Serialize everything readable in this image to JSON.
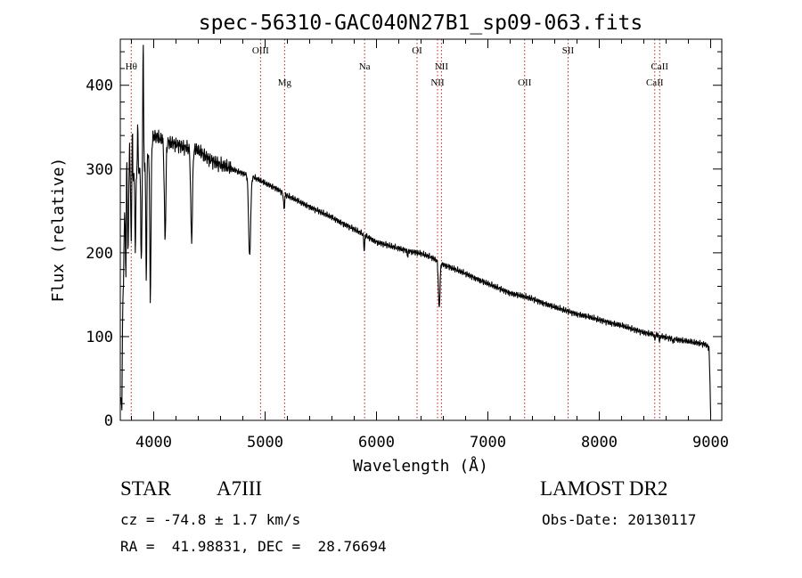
{
  "chart_data": {
    "type": "line",
    "title": "spec-56310-GAC040N27B1_sp09-063.fits",
    "xlabel": "Wavelength (Å)",
    "ylabel": "Flux (relative)",
    "xlim": [
      3700,
      9100
    ],
    "ylim": [
      0,
      455
    ],
    "x_ticks": [
      4000,
      5000,
      6000,
      7000,
      8000,
      9000
    ],
    "y_ticks": [
      0,
      100,
      200,
      300,
      400
    ],
    "grid": false,
    "line_color": "#000000",
    "marker_color": "#b22222",
    "spectral_lines": [
      {
        "label": "Hθ",
        "wavelength": 3798,
        "row": 1
      },
      {
        "label": "OIII",
        "wavelength": 4959,
        "row": 0
      },
      {
        "label": "Mg",
        "wavelength": 5175,
        "row": 2
      },
      {
        "label": "Na",
        "wavelength": 5893,
        "row": 1
      },
      {
        "label": "OI",
        "wavelength": 6364,
        "row": 0
      },
      {
        "label": "NII",
        "wavelength": 6583,
        "row": 1
      },
      {
        "label": "NII",
        "wavelength": 6548,
        "row": 2
      },
      {
        "label": "OII",
        "wavelength": 7330,
        "row": 2
      },
      {
        "label": "SII",
        "wavelength": 7720,
        "row": 0
      },
      {
        "label": "CaII",
        "wavelength": 8542,
        "row": 1
      },
      {
        "label": "CaII",
        "wavelength": 8498,
        "row": 2
      }
    ],
    "series": [
      {
        "continuum": [
          [
            3715,
            20
          ],
          [
            3725,
            220
          ],
          [
            3745,
            250
          ],
          [
            3780,
            280
          ],
          [
            3820,
            290
          ],
          [
            3860,
            300
          ],
          [
            3900,
            300
          ],
          [
            3950,
            318
          ],
          [
            4000,
            340
          ],
          [
            4100,
            333
          ],
          [
            4200,
            330
          ],
          [
            4300,
            325
          ],
          [
            4400,
            322
          ],
          [
            4500,
            312
          ],
          [
            4600,
            305
          ],
          [
            4700,
            300
          ],
          [
            4800,
            295
          ],
          [
            4900,
            290
          ],
          [
            5000,
            283
          ],
          [
            5100,
            277
          ],
          [
            5200,
            268
          ],
          [
            5400,
            255
          ],
          [
            5600,
            242
          ],
          [
            5800,
            228
          ],
          [
            6000,
            213
          ],
          [
            6200,
            205
          ],
          [
            6400,
            199
          ],
          [
            6500,
            194
          ],
          [
            6600,
            186
          ],
          [
            6800,
            175
          ],
          [
            7000,
            163
          ],
          [
            7200,
            152
          ],
          [
            7400,
            145
          ],
          [
            7600,
            135
          ],
          [
            7800,
            127
          ],
          [
            8000,
            120
          ],
          [
            8200,
            113
          ],
          [
            8400,
            105
          ],
          [
            8600,
            99
          ],
          [
            8800,
            94
          ],
          [
            8950,
            91
          ],
          [
            8985,
            87
          ],
          [
            8995,
            40
          ],
          [
            9000,
            8
          ]
        ],
        "absorption_lines": [
          [
            3727,
            150,
            5
          ],
          [
            3750,
            170,
            5
          ],
          [
            3770,
            200,
            5
          ],
          [
            3798,
            215,
            5
          ],
          [
            3835,
            205,
            6
          ],
          [
            3889,
            190,
            7
          ],
          [
            3933,
            165,
            6
          ],
          [
            3970,
            148,
            8
          ],
          [
            4102,
            218,
            10
          ],
          [
            4340,
            215,
            11
          ],
          [
            4861,
            195,
            13
          ],
          [
            5170,
            252,
            7
          ],
          [
            5890,
            203,
            6
          ],
          [
            6280,
            196,
            5
          ],
          [
            6563,
            135,
            10
          ],
          [
            8498,
            96,
            5
          ],
          [
            8542,
            94,
            5
          ],
          [
            8662,
            93,
            5
          ]
        ],
        "emission_spikes": [
          [
            3757,
            315,
            4
          ],
          [
            3783,
            335,
            4
          ],
          [
            3808,
            345,
            4
          ],
          [
            3856,
            355,
            4
          ],
          [
            3905,
            455,
            5
          ]
        ]
      }
    ]
  },
  "info": {
    "object_class": "STAR",
    "object_subclass": "A7III",
    "survey": "LAMOST DR2",
    "cz": "cz = -74.8 ± 1.7 km/s",
    "obs_date": "Obs-Date: 20130117",
    "ra_dec": "RA =  41.98831, DEC =  28.76694"
  }
}
